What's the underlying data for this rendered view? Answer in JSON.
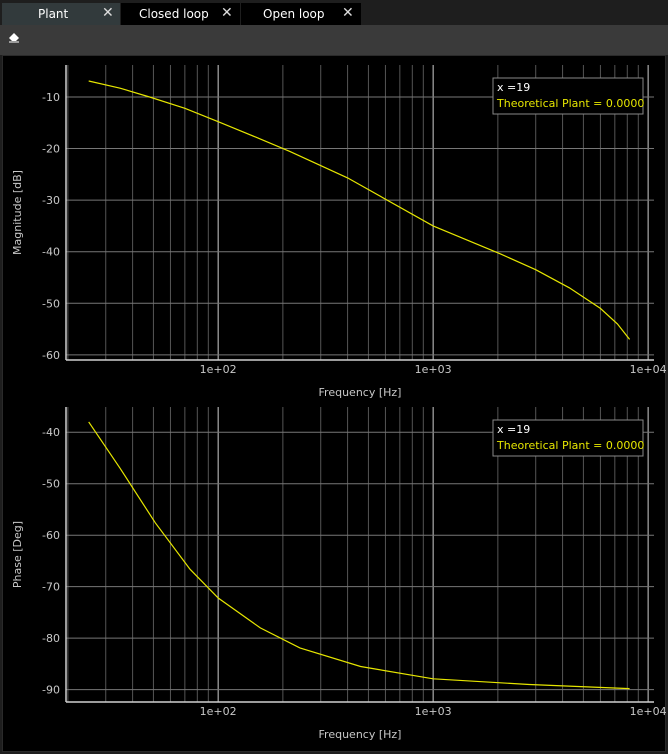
{
  "tabs": [
    {
      "label": "Plant",
      "active": true
    },
    {
      "label": "Closed loop",
      "active": false
    },
    {
      "label": "Open loop",
      "active": false
    }
  ],
  "toolbar": {
    "clear_icon": "eraser-icon"
  },
  "colors": {
    "series": "#e6e600",
    "grid": "#555555",
    "axis": "#d0d0d0",
    "text": "#c8c8c8"
  },
  "chart_data": [
    {
      "type": "line",
      "xlabel": "Frequency [Hz]",
      "ylabel": "Magnitude [dB]",
      "xscale": "log",
      "xlim": [
        19.6,
        10650
      ],
      "ylim": [
        -61,
        -3.8
      ],
      "xticks": [
        {
          "v": 100,
          "label": "1e+02"
        },
        {
          "v": 1000,
          "label": "1e+03"
        },
        {
          "v": 10000,
          "label": "1e+04"
        }
      ],
      "yticks": [
        {
          "v": -10,
          "label": "-10"
        },
        {
          "v": -20,
          "label": "-20"
        },
        {
          "v": -30,
          "label": "-30"
        },
        {
          "v": -40,
          "label": "-40"
        },
        {
          "v": -50,
          "label": "-50"
        },
        {
          "v": -60,
          "label": "-60"
        }
      ],
      "grid": true,
      "series": [
        {
          "name": "Theoretical Plant",
          "x": [
            25,
            35,
            48,
            70,
            100,
            150,
            216,
            400,
            1000,
            2050,
            3000,
            4300,
            6000,
            7200,
            8200
          ],
          "y": [
            -6.9,
            -8.3,
            -10,
            -12.2,
            -14.8,
            -17.8,
            -20.6,
            -25.7,
            -35,
            -40.4,
            -43.5,
            -47,
            -51,
            -54,
            -57
          ]
        }
      ],
      "legend": {
        "position": "top-right",
        "x_label": "x =19",
        "entry": "Theoretical Plant = 0.0000"
      }
    },
    {
      "type": "line",
      "xlabel": "Frequency [Hz]",
      "ylabel": "Phase [Deg]",
      "xscale": "log",
      "xlim": [
        19.6,
        10650
      ],
      "ylim": [
        -92.4,
        -35.1
      ],
      "xticks": [
        {
          "v": 100,
          "label": "1e+02"
        },
        {
          "v": 1000,
          "label": "1e+03"
        },
        {
          "v": 10000,
          "label": "1e+04"
        }
      ],
      "yticks": [
        {
          "v": -40,
          "label": "-40"
        },
        {
          "v": -50,
          "label": "-50"
        },
        {
          "v": -60,
          "label": "-60"
        },
        {
          "v": -70,
          "label": "-70"
        },
        {
          "v": -80,
          "label": "-80"
        },
        {
          "v": -90,
          "label": "-90"
        }
      ],
      "grid": true,
      "series": [
        {
          "name": "Theoretical Plant",
          "x": [
            25,
            35,
            51,
            74,
            100,
            157,
            240,
            460,
            1000,
            2800,
            8200
          ],
          "y": [
            -38,
            -47,
            -57.6,
            -66.6,
            -72.2,
            -78,
            -81.9,
            -85.5,
            -87.9,
            -89,
            -89.8
          ]
        }
      ],
      "legend": {
        "position": "top-right",
        "x_label": "x =19",
        "entry": "Theoretical Plant = 0.0000"
      }
    }
  ]
}
